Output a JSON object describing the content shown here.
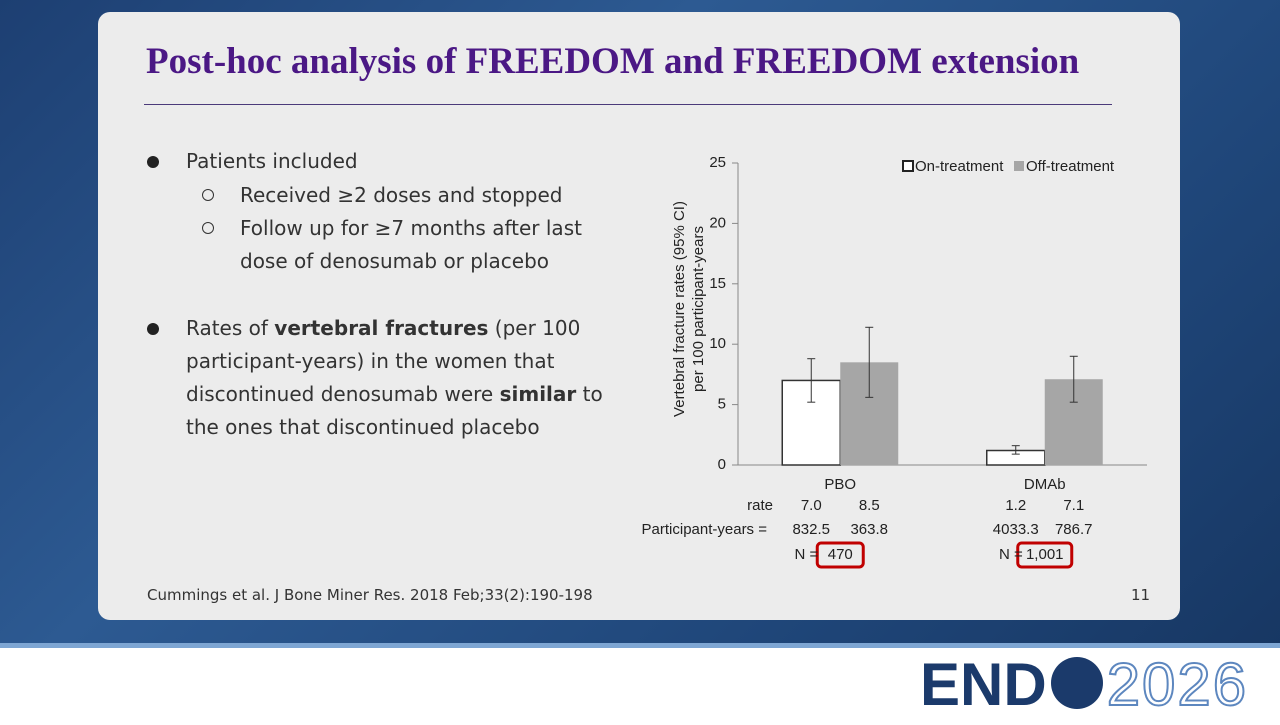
{
  "slide": {
    "title": "Post-hoc analysis of FREEDOM and FREEDOM extension",
    "bullet_1": {
      "text": "Patients included",
      "sub": [
        "Received ≥2 doses and stopped",
        "Follow up for ≥7 months after last dose of denosumab or placebo"
      ]
    },
    "bullet_2": {
      "segments": [
        "Rates of ",
        "vertebral fractures",
        " (per 100 participant-years) in the women that discontinued denosumab were ",
        "similar",
        " to the ones that discontinued placebo"
      ]
    },
    "citation": "Cummings et al. J Bone Miner Res. 2018 Feb;33(2):190-198",
    "page_number": "11",
    "logo": {
      "part_1": "END",
      "part_2": "2026"
    }
  },
  "chart_data": {
    "type": "bar",
    "y_label": [
      "Vertebral fracture rates (95% CI)",
      "per 100 participant-years"
    ],
    "categories": [
      "PBO",
      "DMAb"
    ],
    "series": [
      {
        "name": "On-treatment",
        "color": "#ffffff",
        "values": [
          7.0,
          1.2
        ],
        "value_labels": [
          "7.0",
          "1.2"
        ],
        "ci_low": [
          5.2,
          0.9
        ],
        "ci_high": [
          8.8,
          1.6
        ],
        "participant_years": [
          832.5,
          4033.3
        ]
      },
      {
        "name": "Off-treatment",
        "color": "#a6a6a6",
        "values": [
          8.5,
          7.1
        ],
        "value_labels": [
          "8.5",
          "7.1"
        ],
        "ci_low": [
          5.6,
          5.2
        ],
        "ci_high": [
          11.4,
          9.0
        ],
        "participant_years": [
          363.8,
          786.7
        ]
      }
    ],
    "rate_label": "rate",
    "participant_years_label": "Participant-years =",
    "n_label": "N =",
    "n": [
      470,
      1001
    ],
    "n_labels": [
      "470",
      "1,001"
    ],
    "ylim": [
      0,
      25
    ],
    "yticks": [
      0,
      5,
      10,
      15,
      20,
      25
    ],
    "legend": "upper right"
  }
}
